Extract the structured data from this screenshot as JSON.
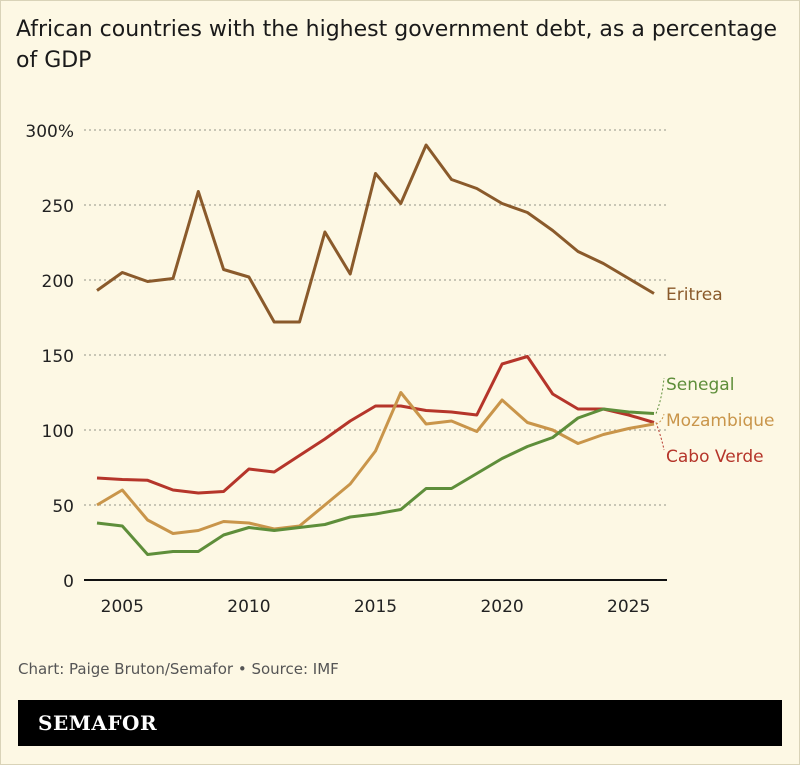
{
  "title": "African countries with the highest government debt, as a percentage of GDP",
  "footer": "Chart: Paige Bruton/Semafor • Source: IMF",
  "brand": "SEMAFOR",
  "chart_data": {
    "type": "line",
    "title": "African countries with the highest government debt, as a percentage of GDP",
    "xlabel": "",
    "ylabel": "",
    "xlim": [
      2004,
      2026
    ],
    "ylim": [
      0,
      300
    ],
    "x_ticks": [
      2005,
      2010,
      2015,
      2020,
      2025
    ],
    "x_tick_labels": [
      "2005",
      "2010",
      "2015",
      "2020",
      "2025"
    ],
    "y_ticks": [
      0,
      50,
      100,
      150,
      200,
      250,
      300
    ],
    "y_tick_labels": [
      "0",
      "50",
      "100",
      "150",
      "200",
      "250",
      "300%"
    ],
    "grid": "horizontal dotted",
    "legend": "direct labels at right",
    "x": [
      2004,
      2005,
      2006,
      2007,
      2008,
      2009,
      2010,
      2011,
      2012,
      2013,
      2014,
      2015,
      2016,
      2017,
      2018,
      2019,
      2020,
      2021,
      2022,
      2023,
      2024,
      2025,
      2026
    ],
    "series": [
      {
        "name": "Eritrea",
        "color": "#8a5a2b",
        "values": [
          193,
          205,
          199,
          201,
          259,
          207,
          202,
          172,
          172,
          232,
          204,
          271,
          251,
          290,
          267,
          261,
          251,
          245,
          233,
          219,
          211,
          201,
          191
        ]
      },
      {
        "name": "Cabo Verde",
        "color": "#b5352a",
        "values": [
          68,
          67,
          66.5,
          60,
          58,
          59,
          74,
          72,
          83,
          94,
          106,
          116,
          116,
          113,
          112,
          110,
          144,
          149,
          124,
          114,
          114,
          110,
          105
        ]
      },
      {
        "name": "Mozambique",
        "color": "#c9954a",
        "values": [
          50,
          60,
          40,
          31,
          33,
          39,
          38,
          34,
          36,
          50,
          64,
          86,
          125,
          104,
          106,
          99,
          120,
          105,
          100,
          91,
          97,
          101,
          104
        ]
      },
      {
        "name": "Senegal",
        "color": "#5e8e3a",
        "values": [
          38,
          36,
          17,
          19,
          19,
          30,
          35,
          33,
          35,
          37,
          42,
          44,
          47,
          61,
          61,
          71,
          81,
          89,
          95,
          108,
          114,
          112,
          111
        ]
      }
    ]
  }
}
